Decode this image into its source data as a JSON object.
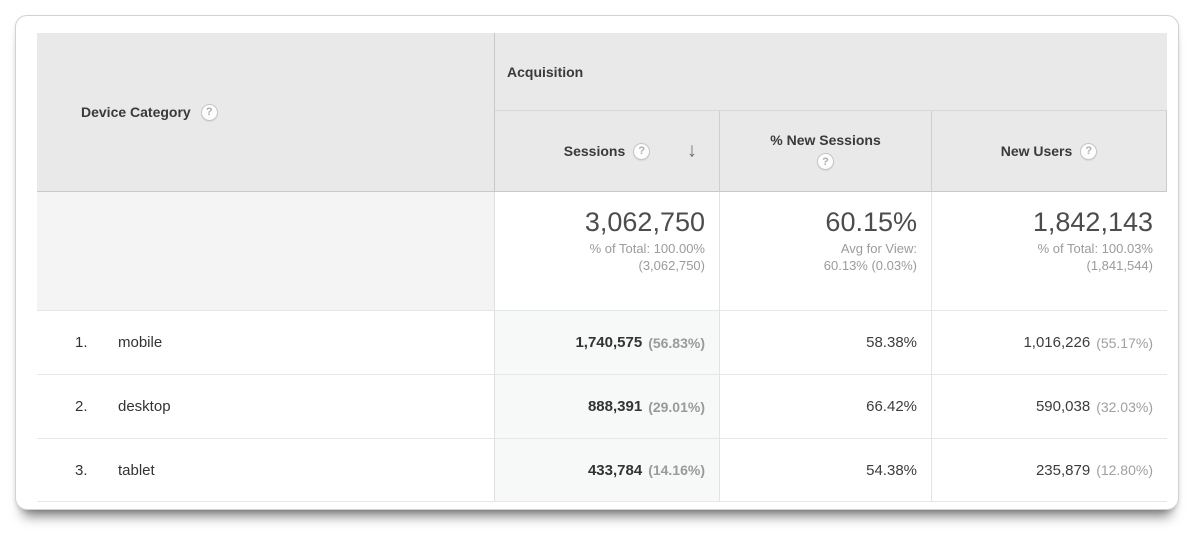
{
  "table": {
    "dimension_header": {
      "label": "Device Category"
    },
    "group_header": "Acquisition",
    "columns": [
      {
        "label": "Sessions",
        "sorted": "descending"
      },
      {
        "label": "% New Sessions"
      },
      {
        "label": "New Users"
      }
    ],
    "summary": {
      "sessions": {
        "value": "3,062,750",
        "line1": "% of Total: 100.00%",
        "line2": "(3,062,750)"
      },
      "percent_new_sessions": {
        "value": "60.15%",
        "line1": "Avg for View:",
        "line2": "60.13% (0.03%)"
      },
      "new_users": {
        "value": "1,842,143",
        "line1": "% of Total: 100.03%",
        "line2": "(1,841,544)"
      }
    },
    "rows": [
      {
        "rank": "1.",
        "label": "mobile",
        "sessions": "1,740,575",
        "sessions_share": "(56.83%)",
        "percent_new_sessions": "58.38%",
        "new_users": "1,016,226",
        "new_users_share": "(55.17%)"
      },
      {
        "rank": "2.",
        "label": "desktop",
        "sessions": "888,391",
        "sessions_share": "(29.01%)",
        "percent_new_sessions": "66.42%",
        "new_users": "590,038",
        "new_users_share": "(32.03%)"
      },
      {
        "rank": "3.",
        "label": "tablet",
        "sessions": "433,784",
        "sessions_share": "(14.16%)",
        "percent_new_sessions": "54.38%",
        "new_users": "235,879",
        "new_users_share": "(12.80%)"
      }
    ]
  },
  "icons": {
    "help_glyph": "?",
    "sort_descending_glyph": "↓"
  },
  "colors": {
    "header_background": "#e9e9e9",
    "sorted_column_background": "#f7f8f8",
    "summary_dimension_background": "#f4f4f4",
    "header_border": "#c9c9c9",
    "row_border": "#e6e6e6",
    "primary_text": "#333333",
    "secondary_text": "#999999",
    "summary_value_text": "#4c4c4c"
  }
}
